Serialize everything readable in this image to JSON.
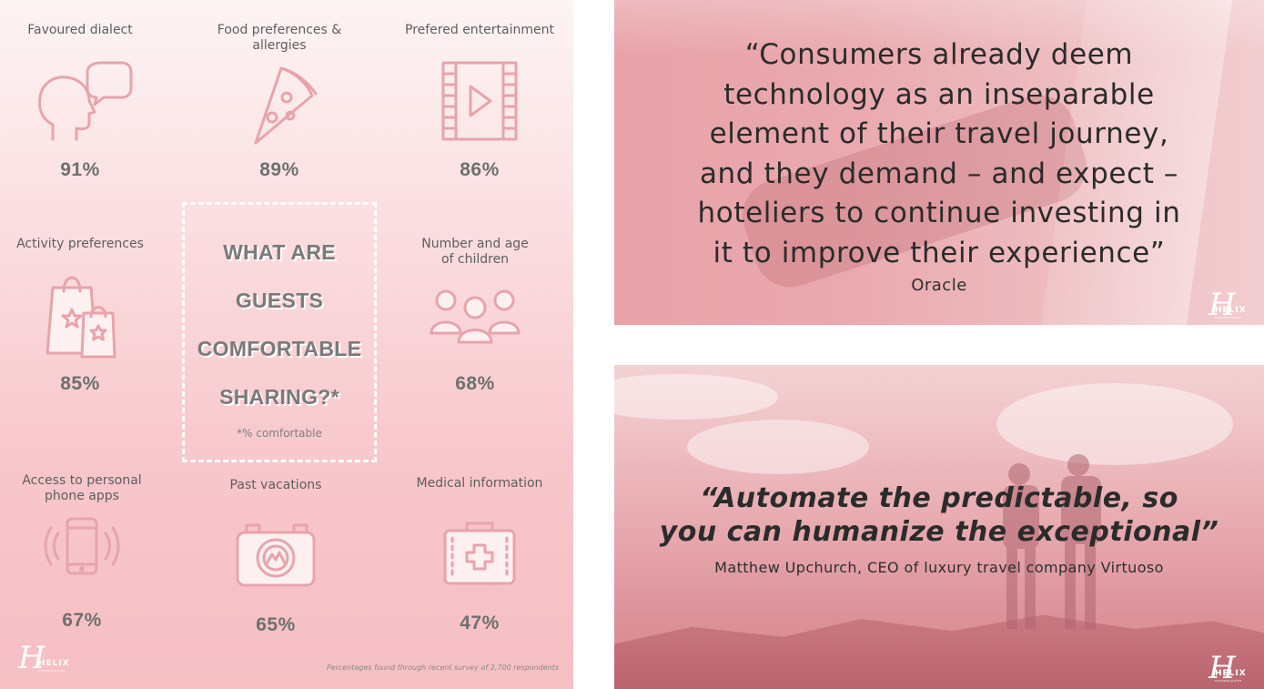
{
  "infographic": {
    "items": [
      {
        "label": "Favoured dialect",
        "value": "91%",
        "icon": "speaking-head-icon"
      },
      {
        "label": "Food preferences & allergies",
        "value": "89%",
        "icon": "pizza-slice-icon"
      },
      {
        "label": "Prefered entertainment",
        "value": "86%",
        "icon": "film-play-icon"
      },
      {
        "label": "Activity preferences",
        "value": "85%",
        "icon": "shopping-bags-icon"
      },
      {
        "label": "Number and age of children",
        "value": "68%",
        "icon": "family-icon"
      },
      {
        "label": "Access to personal phone apps",
        "value": "67%",
        "icon": "vibrating-phone-icon"
      },
      {
        "label": "Past vacations",
        "value": "65%",
        "icon": "camera-icon"
      },
      {
        "label": "Medical information",
        "value": "47%",
        "icon": "first-aid-kit-icon"
      }
    ],
    "center": {
      "line1": "WHAT ARE",
      "line2": "GUESTS",
      "line3": "COMFORTABLE",
      "line4": "SHARING?*",
      "note": "*% comfortable"
    },
    "survey_note": "Percentages found through recent survey of 2,700 respondents",
    "logo": {
      "letter": "H",
      "text": "HELIX",
      "subtext": "TECHNOLOGIES"
    }
  },
  "quote_oracle": {
    "text": "“Consumers already deem technology as an inseparable element of their travel journey, and they demand – and expect – hoteliers to continue investing in it to improve their experience”",
    "line1": "“Consumers already deem",
    "line2": "technology as an inseparable",
    "line3": "element of their travel journey,",
    "line4": "and they demand – and expect –",
    "line5": "hoteliers to continue investing in",
    "line6": "it to improve their experience”",
    "author": "Oracle"
  },
  "quote_upchurch": {
    "line1": "“Automate the predictable, so",
    "line2": "you can humanize the exceptional”",
    "author": "Matthew Upchurch, CEO of luxury travel company Virtuoso"
  },
  "colors": {
    "accent": "#e7a4ab",
    "text_dark": "#2b2b2b",
    "text_grey": "#6f6f6f"
  }
}
